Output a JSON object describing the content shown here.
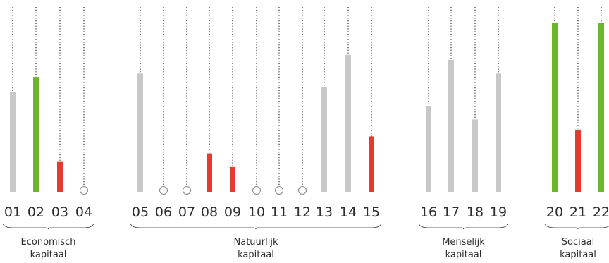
{
  "chart_data": {
    "type": "bar",
    "y_scale": "relative (no axis shown)",
    "ylim": [
      0,
      100
    ],
    "colors": {
      "neutral": "#c8c8c8",
      "positive": "#6cb52d",
      "negative": "#e63a2e",
      "empty_marker": "#8a8a8a",
      "guide": "#2d2d2d"
    },
    "bars": [
      {
        "label": "01",
        "value": 59,
        "status": "neutral"
      },
      {
        "label": "02",
        "value": 68,
        "status": "positive"
      },
      {
        "label": "03",
        "value": 18,
        "status": "negative"
      },
      {
        "label": "04",
        "value": null,
        "status": "none"
      },
      {
        "label": "05",
        "value": 70,
        "status": "neutral"
      },
      {
        "label": "06",
        "value": null,
        "status": "none"
      },
      {
        "label": "07",
        "value": null,
        "status": "none"
      },
      {
        "label": "08",
        "value": 23,
        "status": "negative"
      },
      {
        "label": "09",
        "value": 15,
        "status": "negative"
      },
      {
        "label": "10",
        "value": null,
        "status": "none"
      },
      {
        "label": "11",
        "value": null,
        "status": "none"
      },
      {
        "label": "12",
        "value": null,
        "status": "none"
      },
      {
        "label": "13",
        "value": 62,
        "status": "neutral"
      },
      {
        "label": "14",
        "value": 81,
        "status": "neutral"
      },
      {
        "label": "15",
        "value": 33,
        "status": "negative"
      },
      {
        "label": "16",
        "value": 51,
        "status": "neutral"
      },
      {
        "label": "17",
        "value": 78,
        "status": "neutral"
      },
      {
        "label": "18",
        "value": 43,
        "status": "neutral"
      },
      {
        "label": "19",
        "value": 70,
        "status": "neutral"
      },
      {
        "label": "20",
        "value": 100,
        "status": "positive"
      },
      {
        "label": "21",
        "value": 37,
        "status": "negative"
      },
      {
        "label": "22",
        "value": 100,
        "status": "positive"
      }
    ],
    "groups": [
      {
        "label": [
          "Economisch",
          "kapitaal"
        ],
        "from": 0,
        "to": 3
      },
      {
        "label": [
          "Natuurlijk",
          "kapitaal"
        ],
        "from": 4,
        "to": 14
      },
      {
        "label": [
          "Menselijk",
          "kapitaal"
        ],
        "from": 15,
        "to": 18
      },
      {
        "label": [
          "Sociaal",
          "kapitaal"
        ],
        "from": 19,
        "to": 21
      }
    ]
  }
}
